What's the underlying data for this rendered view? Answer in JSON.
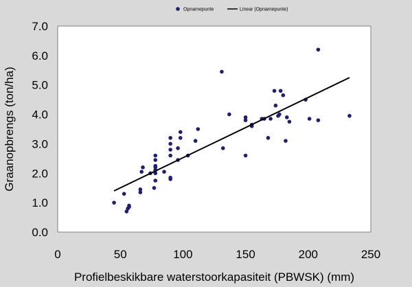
{
  "chart_data": {
    "type": "scatter",
    "xlabel": "Profielbeskikbare waterstoorkapasiteit (PBWSK) (mm)",
    "ylabel": "Graanopbrengs (ton/ha)",
    "xlim": [
      0,
      250
    ],
    "ylim": [
      0,
      7
    ],
    "xticks": [
      "0",
      "50",
      "100",
      "150",
      "200",
      "250"
    ],
    "yticks": [
      "0.0",
      "1.0",
      "2.0",
      "3.0",
      "4.0",
      "5.0",
      "6.0",
      "7.0"
    ],
    "grid": false,
    "legend": "top-center",
    "marker_color": "#1f1f6e",
    "line_color": "#000000",
    "series": [
      {
        "name": "Opnamepunte",
        "kind": "scatter",
        "x": [
          45,
          53,
          55,
          56,
          57,
          57,
          66,
          66,
          67,
          68,
          74,
          77,
          78,
          78,
          78,
          78,
          78,
          78,
          78,
          78,
          85,
          90,
          90,
          90,
          90,
          90,
          90,
          96,
          96,
          98,
          98,
          104,
          110,
          112,
          131,
          132,
          137,
          150,
          150,
          150,
          155,
          155,
          163,
          165,
          168,
          170,
          173,
          174,
          176,
          177,
          178,
          180,
          182,
          183,
          185,
          198,
          201,
          208,
          208,
          233
        ],
        "y": [
          1.0,
          1.3,
          0.7,
          0.8,
          0.9,
          0.85,
          1.35,
          1.45,
          2.05,
          2.2,
          2.0,
          1.5,
          1.75,
          2.0,
          2.1,
          2.2,
          2.25,
          2.45,
          2.6,
          2.1,
          2.05,
          1.8,
          1.85,
          2.6,
          2.8,
          3.0,
          3.2,
          2.45,
          2.85,
          3.2,
          3.4,
          2.6,
          3.1,
          3.5,
          5.45,
          2.85,
          4.0,
          2.6,
          3.8,
          3.9,
          3.6,
          3.65,
          3.85,
          3.85,
          3.2,
          3.85,
          4.8,
          4.3,
          3.95,
          4.0,
          4.8,
          4.65,
          3.1,
          3.9,
          3.75,
          4.5,
          3.85,
          6.2,
          3.8,
          3.95
        ]
      },
      {
        "name": "Linear (Opnamepunte)",
        "kind": "line",
        "x": [
          45,
          233
        ],
        "y": [
          1.4,
          5.25
        ]
      }
    ]
  }
}
